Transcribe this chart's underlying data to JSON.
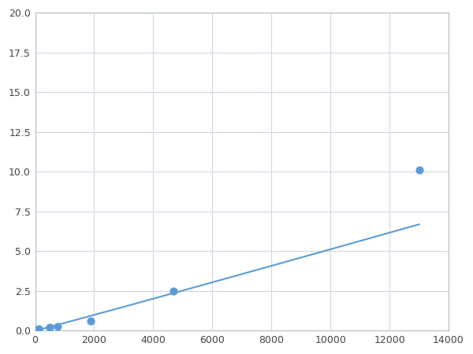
{
  "x": [
    125,
    500,
    750,
    1875,
    4688,
    13000
  ],
  "y": [
    0.1,
    0.2,
    0.25,
    0.6,
    2.5,
    10.1
  ],
  "line_color": "#5b9bd5",
  "marker_color": "#5b9bd5",
  "marker_size": 6,
  "line_width": 1.5,
  "xlim": [
    0,
    14000
  ],
  "ylim": [
    0,
    20
  ],
  "xticks": [
    0,
    2000,
    4000,
    6000,
    8000,
    10000,
    12000,
    14000
  ],
  "yticks": [
    0.0,
    2.5,
    5.0,
    7.5,
    10.0,
    12.5,
    15.0,
    17.5,
    20.0
  ],
  "grid": true,
  "background_color": "#ffffff",
  "axes_background": "#ffffff"
}
